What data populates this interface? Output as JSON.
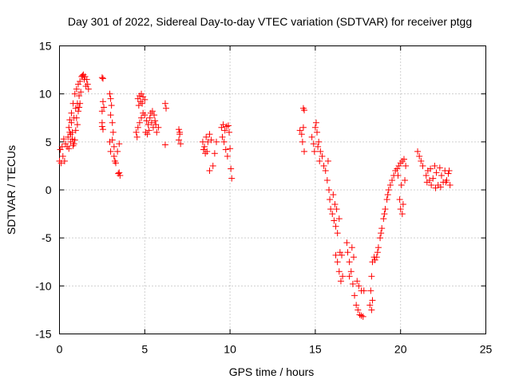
{
  "chart_data": {
    "type": "scatter",
    "title": "Day 301 of 2022, Sidereal Day-to-day VTEC variation (SDTVAR) for receiver ptgg",
    "xlabel": "GPS time / hours",
    "ylabel": "SDTVAR / TECUs",
    "xlim": [
      0,
      25
    ],
    "ylim": [
      -15,
      15
    ],
    "xticks": [
      0,
      5,
      10,
      15,
      20,
      25
    ],
    "yticks": [
      -15,
      -10,
      -5,
      0,
      5,
      10,
      15
    ],
    "grid": true,
    "marker": "+",
    "marker_color": "#ff0000",
    "series": [
      {
        "name": "SDTVAR",
        "points": [
          [
            0.0,
            3.0
          ],
          [
            0.05,
            4.2
          ],
          [
            0.1,
            2.8
          ],
          [
            0.15,
            4.5
          ],
          [
            0.2,
            3.5
          ],
          [
            0.25,
            5.3
          ],
          [
            0.3,
            3.0
          ],
          [
            0.35,
            4.8
          ],
          [
            0.45,
            4.5
          ],
          [
            0.5,
            5.5
          ],
          [
            0.55,
            6.5
          ],
          [
            0.6,
            7.3
          ],
          [
            0.65,
            5.8
          ],
          [
            0.7,
            8.0
          ],
          [
            0.75,
            6.0
          ],
          [
            0.8,
            9.0
          ],
          [
            0.85,
            7.5
          ],
          [
            0.9,
            10.0
          ],
          [
            0.95,
            8.5
          ],
          [
            1.0,
            10.5
          ],
          [
            1.05,
            9.0
          ],
          [
            1.1,
            11.0
          ],
          [
            1.15,
            9.8
          ],
          [
            1.2,
            11.3
          ],
          [
            1.25,
            10.2
          ],
          [
            1.3,
            11.8
          ],
          [
            1.35,
            11.9
          ],
          [
            1.4,
            12.0
          ],
          [
            1.45,
            11.5
          ],
          [
            1.5,
            11.8
          ],
          [
            1.55,
            10.8
          ],
          [
            1.6,
            11.5
          ],
          [
            1.7,
            10.5
          ],
          [
            1.65,
            11.0
          ],
          [
            1.0,
            7.5
          ],
          [
            1.05,
            6.8
          ],
          [
            1.1,
            8.2
          ],
          [
            0.95,
            6.2
          ],
          [
            0.9,
            5.2
          ],
          [
            0.85,
            4.8
          ],
          [
            0.55,
            4.3
          ],
          [
            0.65,
            5.0
          ],
          [
            0.75,
            5.3
          ],
          [
            0.8,
            4.6
          ],
          [
            1.15,
            8.6
          ],
          [
            1.2,
            9.0
          ],
          [
            0.7,
            7.0
          ],
          [
            0.6,
            6.0
          ],
          [
            2.5,
            11.7
          ],
          [
            2.55,
            11.6
          ],
          [
            2.5,
            6.6
          ],
          [
            2.55,
            6.3
          ],
          [
            2.5,
            7.0
          ],
          [
            2.55,
            9.2
          ],
          [
            2.6,
            8.6
          ],
          [
            2.5,
            8.2
          ],
          [
            2.95,
            10.0
          ],
          [
            3.0,
            9.5
          ],
          [
            3.05,
            8.8
          ],
          [
            3.0,
            7.8
          ],
          [
            3.1,
            7.0
          ],
          [
            3.15,
            6.0
          ],
          [
            3.1,
            5.2
          ],
          [
            3.2,
            4.5
          ],
          [
            3.2,
            3.5
          ],
          [
            3.25,
            3.0
          ],
          [
            3.3,
            2.8
          ],
          [
            2.95,
            5.0
          ],
          [
            3.0,
            4.0
          ],
          [
            3.5,
            1.8
          ],
          [
            3.55,
            1.5
          ],
          [
            3.45,
            1.7
          ],
          [
            3.5,
            4.8
          ],
          [
            3.4,
            4.0
          ],
          [
            4.6,
            9.5
          ],
          [
            4.7,
            9.8
          ],
          [
            4.8,
            10.0
          ],
          [
            4.9,
            9.7
          ],
          [
            5.0,
            9.4
          ],
          [
            4.75,
            9.2
          ],
          [
            4.85,
            9.0
          ],
          [
            4.65,
            8.8
          ],
          [
            4.5,
            6.0
          ],
          [
            4.6,
            6.5
          ],
          [
            4.7,
            7.0
          ],
          [
            4.8,
            7.5
          ],
          [
            4.9,
            8.0
          ],
          [
            5.0,
            7.8
          ],
          [
            5.1,
            7.2
          ],
          [
            5.2,
            6.8
          ],
          [
            5.3,
            7.5
          ],
          [
            5.4,
            7.0
          ],
          [
            5.5,
            6.5
          ],
          [
            5.6,
            7.2
          ],
          [
            5.7,
            6.0
          ],
          [
            5.55,
            7.8
          ],
          [
            5.45,
            8.2
          ],
          [
            5.25,
            6.2
          ],
          [
            5.15,
            5.8
          ],
          [
            5.05,
            6.0
          ],
          [
            4.55,
            5.5
          ],
          [
            5.35,
            8.0
          ],
          [
            5.65,
            6.8
          ],
          [
            5.8,
            6.5
          ],
          [
            6.2,
            9.0
          ],
          [
            6.25,
            8.5
          ],
          [
            6.2,
            4.7
          ],
          [
            7.0,
            6.3
          ],
          [
            7.05,
            5.8
          ],
          [
            7.0,
            5.2
          ],
          [
            7.1,
            4.8
          ],
          [
            7.05,
            6.0
          ],
          [
            8.4,
            5.0
          ],
          [
            8.5,
            4.5
          ],
          [
            8.6,
            5.5
          ],
          [
            8.7,
            5.0
          ],
          [
            8.8,
            5.8
          ],
          [
            8.9,
            5.2
          ],
          [
            8.55,
            3.8
          ],
          [
            8.45,
            4.2
          ],
          [
            8.65,
            4.0
          ],
          [
            8.8,
            2.0
          ],
          [
            9.0,
            2.5
          ],
          [
            9.1,
            3.8
          ],
          [
            9.2,
            5.0
          ],
          [
            9.5,
            6.5
          ],
          [
            9.6,
            6.8
          ],
          [
            9.7,
            6.2
          ],
          [
            9.8,
            6.6
          ],
          [
            9.9,
            6.7
          ],
          [
            9.55,
            5.5
          ],
          [
            9.65,
            5.0
          ],
          [
            9.75,
            4.2
          ],
          [
            9.85,
            3.5
          ],
          [
            9.95,
            6.0
          ],
          [
            10.0,
            4.3
          ],
          [
            10.05,
            2.2
          ],
          [
            10.1,
            1.2
          ],
          [
            14.1,
            6.2
          ],
          [
            14.2,
            5.8
          ],
          [
            14.3,
            6.5
          ],
          [
            14.25,
            5.0
          ],
          [
            14.35,
            4.0
          ],
          [
            14.3,
            8.5
          ],
          [
            14.35,
            8.3
          ],
          [
            14.8,
            5.5
          ],
          [
            14.9,
            4.8
          ],
          [
            15.0,
            6.5
          ],
          [
            15.05,
            7.0
          ],
          [
            15.1,
            6.0
          ],
          [
            15.2,
            5.0
          ],
          [
            15.3,
            4.0
          ],
          [
            15.4,
            3.5
          ],
          [
            15.5,
            2.5
          ],
          [
            14.95,
            4.0
          ],
          [
            15.15,
            4.5
          ],
          [
            15.25,
            3.0
          ],
          [
            15.6,
            2.0
          ],
          [
            15.7,
            1.0
          ],
          [
            15.8,
            0.0
          ],
          [
            15.85,
            -1.0
          ],
          [
            15.9,
            -2.0
          ],
          [
            16.0,
            -2.5
          ],
          [
            16.1,
            -3.2
          ],
          [
            16.2,
            -3.8
          ],
          [
            16.3,
            -4.5
          ],
          [
            16.4,
            -3.0
          ],
          [
            16.15,
            -1.5
          ],
          [
            16.05,
            -0.5
          ],
          [
            15.75,
            3.0
          ],
          [
            16.25,
            -2.0
          ],
          [
            16.2,
            -6.8
          ],
          [
            16.3,
            -7.5
          ],
          [
            16.4,
            -8.5
          ],
          [
            16.5,
            -9.5
          ],
          [
            16.6,
            -9.0
          ],
          [
            16.55,
            -6.8
          ],
          [
            16.45,
            -6.5
          ],
          [
            16.85,
            -5.5
          ],
          [
            16.9,
            -6.5
          ],
          [
            17.0,
            -7.5
          ],
          [
            17.1,
            -8.5
          ],
          [
            17.2,
            -9.8
          ],
          [
            17.3,
            -11.0
          ],
          [
            17.4,
            -12.0
          ],
          [
            17.5,
            -12.5
          ],
          [
            17.6,
            -13.0
          ],
          [
            17.7,
            -13.1
          ],
          [
            17.8,
            -13.2
          ],
          [
            17.15,
            -6.0
          ],
          [
            17.25,
            -7.0
          ],
          [
            17.45,
            -9.5
          ],
          [
            17.55,
            -10.0
          ],
          [
            17.7,
            -10.5
          ],
          [
            17.85,
            -10.5
          ],
          [
            17.0,
            -9.0
          ],
          [
            18.2,
            -12.0
          ],
          [
            18.3,
            -12.5
          ],
          [
            18.25,
            -10.5
          ],
          [
            18.35,
            -11.5
          ],
          [
            18.3,
            -9.0
          ],
          [
            18.35,
            -7.5
          ],
          [
            18.45,
            -7.0
          ],
          [
            18.5,
            -7.3
          ],
          [
            18.6,
            -7.0
          ],
          [
            18.7,
            -6.0
          ],
          [
            18.8,
            -5.0
          ],
          [
            18.9,
            -4.0
          ],
          [
            19.0,
            -3.0
          ],
          [
            19.1,
            -2.0
          ],
          [
            19.2,
            -1.0
          ],
          [
            19.3,
            0.0
          ],
          [
            18.65,
            -6.5
          ],
          [
            18.85,
            -4.5
          ],
          [
            19.05,
            -2.5
          ],
          [
            19.25,
            -0.5
          ],
          [
            19.4,
            0.5
          ],
          [
            19.5,
            1.0
          ],
          [
            19.6,
            1.5
          ],
          [
            19.7,
            2.0
          ],
          [
            19.8,
            2.2
          ],
          [
            19.9,
            2.5
          ],
          [
            20.0,
            2.8
          ],
          [
            20.1,
            3.0
          ],
          [
            20.2,
            3.2
          ],
          [
            19.85,
            1.5
          ],
          [
            20.05,
            0.5
          ],
          [
            19.95,
            -1.0
          ],
          [
            20.0,
            -2.0
          ],
          [
            20.1,
            -2.5
          ],
          [
            20.15,
            -1.5
          ],
          [
            20.25,
            1.0
          ],
          [
            20.3,
            2.5
          ],
          [
            21.0,
            4.0
          ],
          [
            21.1,
            3.5
          ],
          [
            21.2,
            3.0
          ],
          [
            21.3,
            2.5
          ],
          [
            21.5,
            1.5
          ],
          [
            21.6,
            2.0
          ],
          [
            21.7,
            1.0
          ],
          [
            21.8,
            0.5
          ],
          [
            21.9,
            1.2
          ],
          [
            22.0,
            2.5
          ],
          [
            22.1,
            1.8
          ],
          [
            22.2,
            0.5
          ],
          [
            22.3,
            2.3
          ],
          [
            22.4,
            1.5
          ],
          [
            22.5,
            0.8
          ],
          [
            22.6,
            2.0
          ],
          [
            22.7,
            1.0
          ],
          [
            22.8,
            1.7
          ],
          [
            22.9,
            0.5
          ],
          [
            21.55,
            0.8
          ],
          [
            21.75,
            2.2
          ],
          [
            22.05,
            0.2
          ],
          [
            22.35,
            0.3
          ],
          [
            22.65,
            0.8
          ],
          [
            22.85,
            2.0
          ]
        ]
      }
    ]
  }
}
